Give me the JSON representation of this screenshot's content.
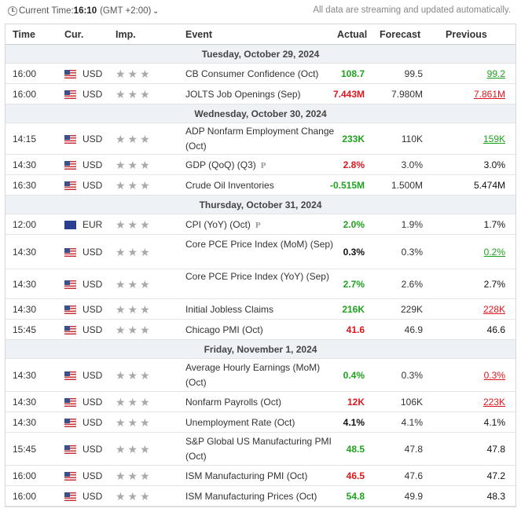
{
  "topbar": {
    "current_time_label": "Current Time:",
    "current_time": "16:10",
    "timezone": "(GMT +2:00)",
    "note": "All data are streaming and updated automatically."
  },
  "columns": {
    "time": "Time",
    "cur": "Cur.",
    "imp": "Imp.",
    "event": "Event",
    "actual": "Actual",
    "forecast": "Forecast",
    "previous": "Previous"
  },
  "days": [
    "Tuesday, October 29, 2024",
    "Wednesday, October 30, 2024",
    "Thursday, October 31, 2024",
    "Friday, November 1, 2024"
  ],
  "events": [
    {
      "time": "16:00",
      "cur": "USD",
      "event": "CB Consumer Confidence (Oct)",
      "actual": "108.7",
      "forecast": "99.5",
      "previous": "99.2"
    },
    {
      "time": "16:00",
      "cur": "USD",
      "event": "JOLTS Job Openings (Sep)",
      "actual": "7.443M",
      "forecast": "7.980M",
      "previous": "7.861M"
    },
    {
      "time": "14:15",
      "cur": "USD",
      "event": "ADP Nonfarm Employment Change (Oct)",
      "actual": "233K",
      "forecast": "110K",
      "previous": "159K"
    },
    {
      "time": "14:30",
      "cur": "USD",
      "event": "GDP (QoQ) (Q3)",
      "actual": "2.8%",
      "forecast": "3.0%",
      "previous": "3.0%"
    },
    {
      "time": "16:30",
      "cur": "USD",
      "event": "Crude Oil Inventories",
      "actual": "-0.515M",
      "forecast": "1.500M",
      "previous": "5.474M"
    },
    {
      "time": "12:00",
      "cur": "EUR",
      "event": "CPI (YoY) (Oct)",
      "actual": "2.0%",
      "forecast": "1.9%",
      "previous": "1.7%"
    },
    {
      "time": "14:30",
      "cur": "USD",
      "event": "Core PCE Price Index (MoM) (Sep)",
      "actual": "0.3%",
      "forecast": "0.3%",
      "previous": "0.2%"
    },
    {
      "time": "14:30",
      "cur": "USD",
      "event": "Core PCE Price Index (YoY) (Sep)",
      "actual": "2.7%",
      "forecast": "2.6%",
      "previous": "2.7%"
    },
    {
      "time": "14:30",
      "cur": "USD",
      "event": "Initial Jobless Claims",
      "actual": "216K",
      "forecast": "229K",
      "previous": "228K"
    },
    {
      "time": "15:45",
      "cur": "USD",
      "event": "Chicago PMI (Oct)",
      "actual": "41.6",
      "forecast": "46.9",
      "previous": "46.6"
    },
    {
      "time": "14:30",
      "cur": "USD",
      "event": "Average Hourly Earnings (MoM) (Oct)",
      "actual": "0.4%",
      "forecast": "0.3%",
      "previous": "0.3%"
    },
    {
      "time": "14:30",
      "cur": "USD",
      "event": "Nonfarm Payrolls (Oct)",
      "actual": "12K",
      "forecast": "106K",
      "previous": "223K"
    },
    {
      "time": "14:30",
      "cur": "USD",
      "event": "Unemployment Rate (Oct)",
      "actual": "4.1%",
      "forecast": "4.1%",
      "previous": "4.1%"
    },
    {
      "time": "15:45",
      "cur": "USD",
      "event": "S&P Global US Manufacturing PMI (Oct)",
      "actual": "48.5",
      "forecast": "47.8",
      "previous": "47.8"
    },
    {
      "time": "16:00",
      "cur": "USD",
      "event": "ISM Manufacturing PMI (Oct)",
      "actual": "46.5",
      "forecast": "47.6",
      "previous": "47.2"
    },
    {
      "time": "16:00",
      "cur": "USD",
      "event": "ISM Manufacturing Prices (Oct)",
      "actual": "54.8",
      "forecast": "49.9",
      "previous": "48.3"
    }
  ],
  "stars": "★★★",
  "preliminary_mark": "P",
  "colors": {
    "green": "#1ea31e",
    "red": "#e0161c",
    "day_bg": "#eef1f6"
  }
}
